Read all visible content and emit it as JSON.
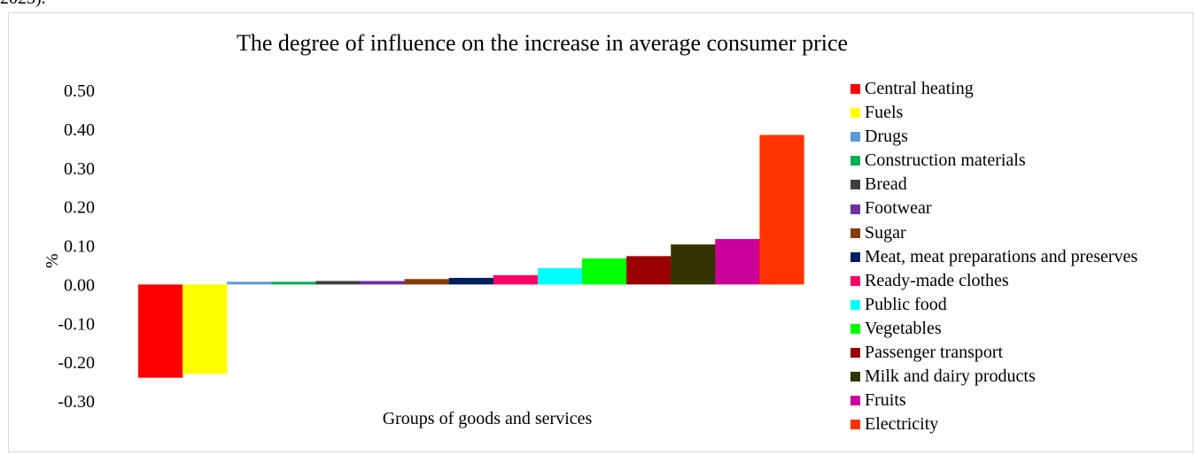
{
  "page": {
    "top_fragment": "2023)."
  },
  "chart_data": {
    "type": "bar",
    "title": "The degree of influence on the increase in average consumer price",
    "xlabel": "Groups of goods and services",
    "ylabel": "%",
    "ylim": [
      -0.3,
      0.5
    ],
    "yticks": [
      0.5,
      0.4,
      0.3,
      0.2,
      0.1,
      0.0,
      -0.1,
      -0.2,
      -0.3
    ],
    "ytick_labels": [
      "0.50",
      "0.40",
      "0.30",
      "0.20",
      "0.10",
      "0.00",
      "-0.10",
      "-0.20",
      "-0.30"
    ],
    "grid": false,
    "legend_position": "right",
    "series": [
      {
        "name": "Central heating",
        "value": -0.24,
        "color": "#ff0000"
      },
      {
        "name": "Fuels",
        "value": -0.23,
        "color": "#ffff00"
      },
      {
        "name": "Drugs",
        "value": 0.007,
        "color": "#5b9bd5"
      },
      {
        "name": "Construction materials",
        "value": 0.007,
        "color": "#00b050"
      },
      {
        "name": "Bread",
        "value": 0.009,
        "color": "#404040"
      },
      {
        "name": "Footwear",
        "value": 0.009,
        "color": "#7030a0"
      },
      {
        "name": "Sugar",
        "value": 0.014,
        "color": "#843c0c"
      },
      {
        "name": "Meat, meat preparations and preserves",
        "value": 0.017,
        "color": "#002060"
      },
      {
        "name": "Ready-made clothes",
        "value": 0.024,
        "color": "#ff0066"
      },
      {
        "name": "Public food",
        "value": 0.042,
        "color": "#00ffff"
      },
      {
        "name": "Vegetables",
        "value": 0.067,
        "color": "#00ff00"
      },
      {
        "name": "Passenger transport",
        "value": 0.073,
        "color": "#990000"
      },
      {
        "name": "Milk and dairy products",
        "value": 0.103,
        "color": "#333300"
      },
      {
        "name": "Fruits",
        "value": 0.117,
        "color": "#cc0099"
      },
      {
        "name": "Electricity",
        "value": 0.385,
        "color": "#ff3300"
      }
    ]
  }
}
